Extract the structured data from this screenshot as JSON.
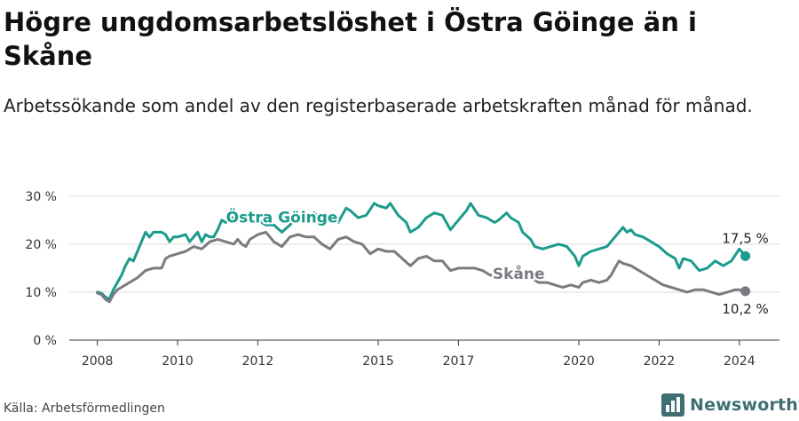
{
  "title": "Högre ungdomsarbetslöshet i Östra Göinge än i Skåne",
  "subtitle": "Arbetssökande som andel av den registerbaserade arbetskraften månad för månad.",
  "source": "Källa: Arbetsförmedlingen",
  "brand": "Newsworthy",
  "colors": {
    "ostra": "#1a9b8c",
    "skane": "#7b7a80",
    "grid": "#d9d9d9",
    "axis": "#333333",
    "brand": "#3f6f73"
  },
  "chart_data": {
    "type": "line",
    "title": "Högre ungdomsarbetslöshet i Östra Göinge än i Skåne",
    "ylabel": "",
    "xlabel": "",
    "ylim": [
      0,
      32
    ],
    "y_ticks": [
      0,
      10,
      20,
      30
    ],
    "y_tick_labels": [
      "0 %",
      "10 %",
      "20 %",
      "30 %"
    ],
    "x_range": [
      2007.3,
      2025.0
    ],
    "x_ticks": [
      2008,
      2010,
      2012,
      2015,
      2017,
      2020,
      2022,
      2024
    ],
    "x_tick_labels": [
      "2008",
      "2010",
      "2012",
      "2015",
      "2017",
      "2020",
      "2022",
      "2024"
    ],
    "series": [
      {
        "name": "Östra Göinge",
        "label": "Östra Göinge",
        "end_label": "17,5 %",
        "end_value": 17.5,
        "points": [
          [
            2008.0,
            10.0
          ],
          [
            2008.1,
            9.8
          ],
          [
            2008.2,
            9.0
          ],
          [
            2008.3,
            8.5
          ],
          [
            2008.4,
            10.5
          ],
          [
            2008.5,
            12.0
          ],
          [
            2008.6,
            13.5
          ],
          [
            2008.7,
            15.5
          ],
          [
            2008.8,
            17.0
          ],
          [
            2008.9,
            16.5
          ],
          [
            2009.0,
            18.5
          ],
          [
            2009.1,
            20.5
          ],
          [
            2009.2,
            22.5
          ],
          [
            2009.3,
            21.5
          ],
          [
            2009.4,
            22.5
          ],
          [
            2009.6,
            22.5
          ],
          [
            2009.7,
            22.0
          ],
          [
            2009.8,
            20.5
          ],
          [
            2009.9,
            21.5
          ],
          [
            2010.0,
            21.5
          ],
          [
            2010.2,
            22.0
          ],
          [
            2010.3,
            20.5
          ],
          [
            2010.4,
            21.5
          ],
          [
            2010.5,
            22.5
          ],
          [
            2010.6,
            20.5
          ],
          [
            2010.7,
            22.0
          ],
          [
            2010.8,
            21.5
          ],
          [
            2010.9,
            21.5
          ],
          [
            2011.0,
            23.0
          ],
          [
            2011.1,
            25.0
          ],
          [
            2011.2,
            24.5
          ],
          [
            2011.3,
            25.5
          ],
          [
            2011.4,
            25.5
          ],
          [
            2011.5,
            26.0
          ],
          [
            2011.6,
            25.0
          ],
          [
            2011.7,
            25.5
          ],
          [
            2011.8,
            25.0
          ],
          [
            2011.9,
            24.5
          ],
          [
            2012.0,
            25.0
          ],
          [
            2012.2,
            24.0
          ],
          [
            2012.4,
            24.0
          ],
          [
            2012.6,
            22.5
          ],
          [
            2012.8,
            24.0
          ],
          [
            2013.0,
            26.0
          ],
          [
            2013.2,
            25.5
          ],
          [
            2013.4,
            26.5
          ],
          [
            2013.6,
            25.0
          ],
          [
            2013.8,
            26.0
          ],
          [
            2014.0,
            24.5
          ],
          [
            2014.2,
            27.5
          ],
          [
            2014.3,
            27.0
          ],
          [
            2014.5,
            25.5
          ],
          [
            2014.7,
            26.0
          ],
          [
            2014.9,
            28.5
          ],
          [
            2015.0,
            28.0
          ],
          [
            2015.2,
            27.5
          ],
          [
            2015.3,
            28.5
          ],
          [
            2015.5,
            26.0
          ],
          [
            2015.7,
            24.5
          ],
          [
            2015.8,
            22.5
          ],
          [
            2016.0,
            23.5
          ],
          [
            2016.2,
            25.5
          ],
          [
            2016.4,
            26.5
          ],
          [
            2016.6,
            26.0
          ],
          [
            2016.8,
            23.0
          ],
          [
            2017.0,
            25.0
          ],
          [
            2017.2,
            27.0
          ],
          [
            2017.3,
            28.5
          ],
          [
            2017.5,
            26.0
          ],
          [
            2017.7,
            25.5
          ],
          [
            2017.9,
            24.5
          ],
          [
            2018.0,
            25.0
          ],
          [
            2018.2,
            26.5
          ],
          [
            2018.3,
            25.5
          ],
          [
            2018.5,
            24.5
          ],
          [
            2018.6,
            22.5
          ],
          [
            2018.8,
            21.0
          ],
          [
            2018.9,
            19.5
          ],
          [
            2019.1,
            19.0
          ],
          [
            2019.3,
            19.5
          ],
          [
            2019.5,
            20.0
          ],
          [
            2019.7,
            19.5
          ],
          [
            2019.8,
            18.5
          ],
          [
            2019.9,
            17.5
          ],
          [
            2020.0,
            15.5
          ],
          [
            2020.1,
            17.5
          ],
          [
            2020.3,
            18.5
          ],
          [
            2020.5,
            19.0
          ],
          [
            2020.7,
            19.5
          ],
          [
            2020.9,
            21.5
          ],
          [
            2021.0,
            22.5
          ],
          [
            2021.1,
            23.5
          ],
          [
            2021.2,
            22.5
          ],
          [
            2021.3,
            23.0
          ],
          [
            2021.4,
            22.0
          ],
          [
            2021.6,
            21.5
          ],
          [
            2021.8,
            20.5
          ],
          [
            2022.0,
            19.5
          ],
          [
            2022.2,
            18.0
          ],
          [
            2022.4,
            17.0
          ],
          [
            2022.5,
            15.0
          ],
          [
            2022.6,
            17.0
          ],
          [
            2022.8,
            16.5
          ],
          [
            2023.0,
            14.5
          ],
          [
            2023.2,
            15.0
          ],
          [
            2023.4,
            16.5
          ],
          [
            2023.6,
            15.5
          ],
          [
            2023.8,
            16.5
          ],
          [
            2024.0,
            19.0
          ],
          [
            2024.15,
            17.5
          ]
        ]
      },
      {
        "name": "Skåne",
        "label": "Skåne",
        "end_label": "10,2 %",
        "end_value": 10.2,
        "points": [
          [
            2008.0,
            9.8
          ],
          [
            2008.1,
            9.5
          ],
          [
            2008.2,
            8.5
          ],
          [
            2008.3,
            8.0
          ],
          [
            2008.4,
            9.5
          ],
          [
            2008.5,
            10.5
          ],
          [
            2008.6,
            11.0
          ],
          [
            2008.8,
            12.0
          ],
          [
            2009.0,
            13.0
          ],
          [
            2009.2,
            14.5
          ],
          [
            2009.4,
            15.0
          ],
          [
            2009.6,
            15.0
          ],
          [
            2009.7,
            17.0
          ],
          [
            2009.8,
            17.5
          ],
          [
            2010.0,
            18.0
          ],
          [
            2010.2,
            18.5
          ],
          [
            2010.4,
            19.5
          ],
          [
            2010.6,
            19.0
          ],
          [
            2010.8,
            20.5
          ],
          [
            2011.0,
            21.0
          ],
          [
            2011.2,
            20.5
          ],
          [
            2011.4,
            20.0
          ],
          [
            2011.5,
            21.0
          ],
          [
            2011.6,
            20.0
          ],
          [
            2011.7,
            19.5
          ],
          [
            2011.8,
            21.0
          ],
          [
            2012.0,
            22.0
          ],
          [
            2012.2,
            22.5
          ],
          [
            2012.4,
            20.5
          ],
          [
            2012.6,
            19.5
          ],
          [
            2012.8,
            21.5
          ],
          [
            2013.0,
            22.0
          ],
          [
            2013.2,
            21.5
          ],
          [
            2013.4,
            21.5
          ],
          [
            2013.6,
            20.0
          ],
          [
            2013.8,
            19.0
          ],
          [
            2014.0,
            21.0
          ],
          [
            2014.2,
            21.5
          ],
          [
            2014.4,
            20.5
          ],
          [
            2014.6,
            20.0
          ],
          [
            2014.8,
            18.0
          ],
          [
            2015.0,
            19.0
          ],
          [
            2015.2,
            18.5
          ],
          [
            2015.4,
            18.5
          ],
          [
            2015.6,
            17.0
          ],
          [
            2015.8,
            15.5
          ],
          [
            2016.0,
            17.0
          ],
          [
            2016.2,
            17.5
          ],
          [
            2016.4,
            16.5
          ],
          [
            2016.6,
            16.5
          ],
          [
            2016.8,
            14.5
          ],
          [
            2017.0,
            15.0
          ],
          [
            2017.2,
            15.0
          ],
          [
            2017.4,
            15.0
          ],
          [
            2017.6,
            14.5
          ],
          [
            2017.8,
            13.5
          ],
          [
            2018.0,
            14.0
          ],
          [
            2018.2,
            14.5
          ],
          [
            2018.4,
            14.0
          ],
          [
            2018.6,
            13.5
          ],
          [
            2018.8,
            13.0
          ],
          [
            2019.0,
            12.0
          ],
          [
            2019.2,
            12.0
          ],
          [
            2019.4,
            11.5
          ],
          [
            2019.6,
            11.0
          ],
          [
            2019.8,
            11.5
          ],
          [
            2020.0,
            11.0
          ],
          [
            2020.1,
            12.0
          ],
          [
            2020.3,
            12.5
          ],
          [
            2020.5,
            12.0
          ],
          [
            2020.7,
            12.5
          ],
          [
            2020.8,
            13.5
          ],
          [
            2020.9,
            15.0
          ],
          [
            2021.0,
            16.5
          ],
          [
            2021.1,
            16.0
          ],
          [
            2021.3,
            15.5
          ],
          [
            2021.5,
            14.5
          ],
          [
            2021.7,
            13.5
          ],
          [
            2021.9,
            12.5
          ],
          [
            2022.1,
            11.5
          ],
          [
            2022.3,
            11.0
          ],
          [
            2022.5,
            10.5
          ],
          [
            2022.7,
            10.0
          ],
          [
            2022.9,
            10.5
          ],
          [
            2023.1,
            10.5
          ],
          [
            2023.3,
            10.0
          ],
          [
            2023.5,
            9.5
          ],
          [
            2023.7,
            10.0
          ],
          [
            2023.9,
            10.5
          ],
          [
            2024.0,
            10.5
          ],
          [
            2024.15,
            10.2
          ]
        ]
      }
    ],
    "annotations": [
      {
        "text": "Östra Göinge",
        "x": 2012.6,
        "y": 24.5,
        "series": "Östra Göinge"
      },
      {
        "text": "Skåne",
        "x": 2018.5,
        "y": 12.8,
        "series": "Skåne"
      }
    ]
  }
}
